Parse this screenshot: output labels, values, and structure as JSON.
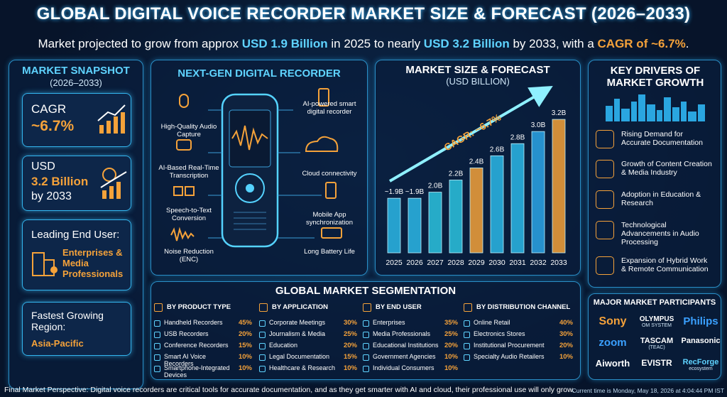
{
  "header": {
    "title": "GLOBAL DIGITAL VOICE RECORDER MARKET SIZE & FORECAST (2026–2033)",
    "subtitle": [
      "Market projected to grow from approx ",
      "USD 1.9 Billion",
      " in 2025 to nearly ",
      "USD 3.2 Billion",
      " by 2033, with a ",
      "CAGR of ~6.7%",
      "."
    ]
  },
  "snapshot": {
    "title": "MARKET SNAPSHOT",
    "period": "(2026–2033)",
    "cagr": {
      "label": "CAGR",
      "value": "~6.7%"
    },
    "size": {
      "label": "USD",
      "value": "3.2 Billion",
      "note": "by 2033"
    },
    "end_user": {
      "label": "Leading End User:",
      "value": "Enterprises & Media Professionals"
    },
    "region": {
      "label": "Fastest Growing Region:",
      "value": "Asia-Pacific"
    }
  },
  "recorder": {
    "title": "NEXT-GEN DIGITAL RECORDER",
    "features": [
      "High-Quality Audio Capture",
      "AI-Based Real-Time Transcription",
      "Speech-to-Text Conversion",
      "Noise Reduction (ENC)",
      "AI-powered smart digital recorder",
      "Cloud connectivity",
      "Mobile App synchronization",
      "Long Battery Life"
    ]
  },
  "chart_data": {
    "type": "bar",
    "title": "MARKET SIZE & FORECAST",
    "subtitle": "(USD BILLION)",
    "categories": [
      "2025",
      "2026",
      "2027",
      "2028",
      "2029",
      "2030",
      "2031",
      "2032",
      "2033"
    ],
    "values": [
      1.9,
      1.9,
      2.0,
      2.2,
      2.4,
      2.6,
      2.8,
      3.0,
      3.2
    ],
    "value_labels": [
      "~1.9B",
      "~1.9B",
      "2.0B",
      "2.2B",
      "2.4B",
      "2.6B",
      "2.8B",
      "3.0B",
      "3.2B"
    ],
    "colors": [
      "#2bb8e8",
      "#2bb8e8",
      "#2bc4e0",
      "#2bc4e0",
      "#f5a23a",
      "#2bb8e8",
      "#2bb8e8",
      "#2ba6e8",
      "#f5a23a"
    ],
    "ylim": [
      1.0,
      3.4
    ],
    "annotation": "CAGR: ~6.7%"
  },
  "drivers": {
    "title": "KEY DRIVERS OF MARKET GROWTH",
    "items": [
      "Rising Demand for Accurate Documentation",
      "Growth of Content Creation & Media Industry",
      "Adoption in Education & Research",
      "Technological Advancements in Audio Processing",
      "Expansion of Hybrid Work & Remote Communication"
    ]
  },
  "segmentation": {
    "title": "GLOBAL MARKET SEGMENTATION",
    "groups": [
      {
        "title": "BY PRODUCT TYPE",
        "rows": [
          [
            "Handheld Recorders",
            "45%"
          ],
          [
            "USB Recorders",
            "20%"
          ],
          [
            "Conference Recorders",
            "15%"
          ],
          [
            "Smart AI Voice Recorders",
            "10%"
          ],
          [
            "Smartphone-Integrated Devices",
            "10%"
          ]
        ]
      },
      {
        "title": "BY APPLICATION",
        "rows": [
          [
            "Corporate Meetings",
            "30%"
          ],
          [
            "Journalism & Media",
            "25%"
          ],
          [
            "Education",
            "20%"
          ],
          [
            "Legal Documentation",
            "15%"
          ],
          [
            "Healthcare & Research",
            "10%"
          ]
        ]
      },
      {
        "title": "BY END USER",
        "rows": [
          [
            "Enterprises",
            "35%"
          ],
          [
            "Media Professionals",
            "25%"
          ],
          [
            "Educational Institutions",
            "20%"
          ],
          [
            "Government Agencies",
            "10%"
          ],
          [
            "Individual Consumers",
            "10%"
          ]
        ]
      },
      {
        "title": "BY DISTRIBUTION CHANNEL",
        "rows": [
          [
            "Online Retail",
            "40%"
          ],
          [
            "Electronics Stores",
            "30%"
          ],
          [
            "Institutional Procurement",
            "20%"
          ],
          [
            "Specialty Audio Retailers",
            "10%"
          ]
        ]
      }
    ]
  },
  "participants": {
    "title": "MAJOR MARKET PARTICIPANTS",
    "logos": [
      {
        "name": "Sony"
      },
      {
        "name": "OLYMPUS",
        "sub": "OM SYSTEM"
      },
      {
        "name": "Philips"
      },
      {
        "name": "zoom"
      },
      {
        "name": "TASCAM",
        "sub": "(TEAC)"
      },
      {
        "name": "Panasonic"
      },
      {
        "name": "Aiworth"
      },
      {
        "name": "EVISTR"
      },
      {
        "name": "RecForge",
        "sub": "ecosystem"
      }
    ]
  },
  "footer": {
    "perspective": "Final Market Perspective: Digital voice recorders are critical tools for accurate documentation, and as they get smarter with AI and cloud, their professional use will only grow.",
    "timestamp": "Current time is Monday, May 18, 2026 at 4:04:44 PM IST"
  }
}
